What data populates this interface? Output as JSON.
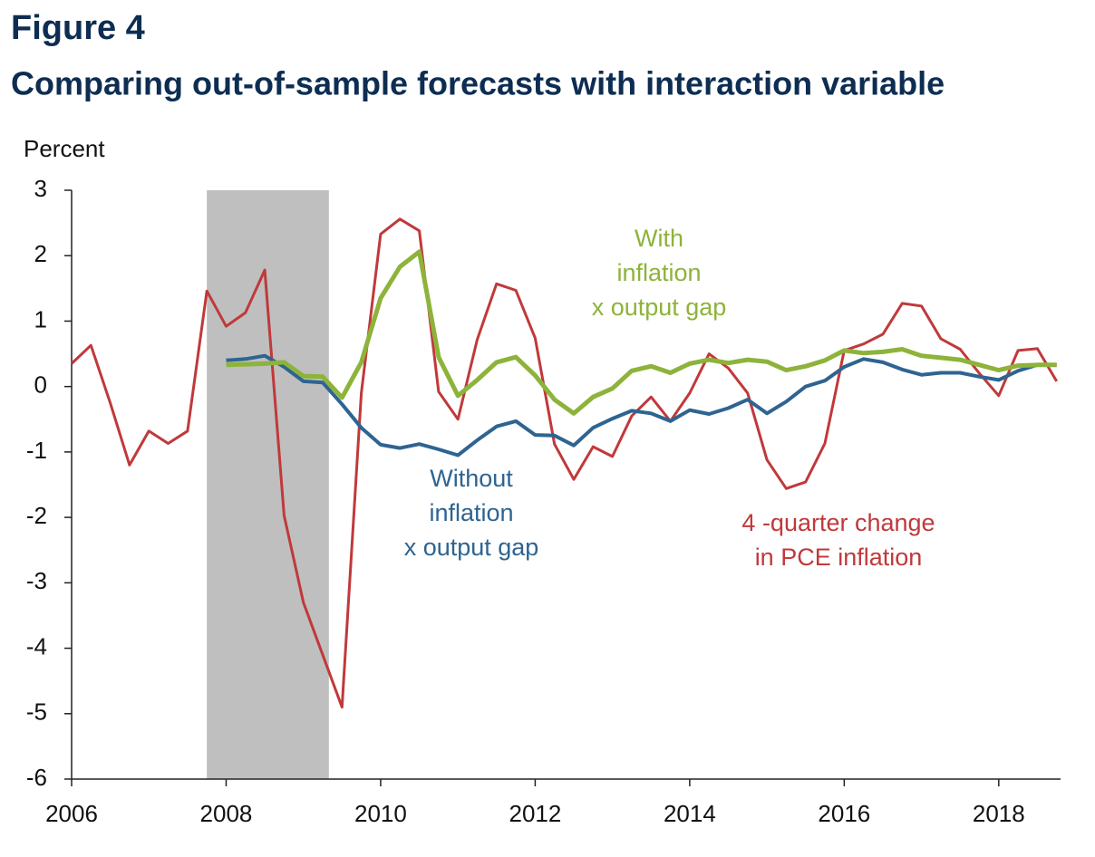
{
  "chart_data": {
    "type": "line",
    "title": "Figure 4",
    "subtitle": "Comparing out-of-sample forecasts with interaction variable",
    "y_label": "Percent",
    "xlim": [
      2006,
      2018.8
    ],
    "xticks": [
      2006,
      2008,
      2010,
      2012,
      2014,
      2016,
      2018
    ],
    "ylim": [
      -6,
      3
    ],
    "yticks": [
      -6,
      -5,
      -4,
      -3,
      -2,
      -1,
      0,
      1,
      2,
      3
    ],
    "shade": {
      "x": [
        2007.75,
        2009.33
      ],
      "color": "#bfbfbf"
    },
    "series": [
      {
        "label": [
          "4 -quarter change",
          "in PCE inflation"
        ],
        "color": "#c0393b",
        "width": 3,
        "x": [
          2006,
          2006.25,
          2006.5,
          2006.75,
          2007,
          2007.25,
          2007.5,
          2007.75,
          2008,
          2008.25,
          2008.5,
          2008.75,
          2009,
          2009.25,
          2009.5,
          2009.75,
          2010,
          2010.25,
          2010.5,
          2010.75,
          2011,
          2011.25,
          2011.5,
          2011.75,
          2012,
          2012.25,
          2012.5,
          2012.75,
          2013,
          2013.25,
          2013.5,
          2013.75,
          2014,
          2014.25,
          2014.5,
          2014.75,
          2015,
          2015.25,
          2015.5,
          2015.75,
          2016,
          2016.25,
          2016.5,
          2016.75,
          2017,
          2017.25,
          2017.5,
          2017.75,
          2018,
          2018.25,
          2018.5,
          2018.75
        ],
        "values": [
          0.35,
          0.63,
          -0.25,
          -1.2,
          -0.68,
          -0.87,
          -0.68,
          1.46,
          0.92,
          1.13,
          1.78,
          -1.97,
          -3.3,
          -4.1,
          -4.9,
          -0.1,
          2.33,
          2.56,
          2.38,
          -0.08,
          -0.5,
          0.72,
          1.57,
          1.47,
          0.74,
          -0.88,
          -1.42,
          -0.92,
          -1.07,
          -0.45,
          -0.16,
          -0.53,
          -0.1,
          0.5,
          0.28,
          -0.1,
          -1.12,
          -1.56,
          -1.46,
          -0.87,
          0.55,
          0.65,
          0.8,
          1.27,
          1.23,
          0.73,
          0.57,
          0.2,
          -0.14,
          0.55,
          0.58,
          0.08
        ]
      },
      {
        "label": [
          "Without",
          "inflation",
          "x output gap"
        ],
        "color": "#2e6491",
        "width": 4,
        "x": [
          2008,
          2008.25,
          2008.5,
          2008.75,
          2009,
          2009.25,
          2009.5,
          2009.75,
          2010,
          2010.25,
          2010.5,
          2010.75,
          2011,
          2011.25,
          2011.5,
          2011.75,
          2012,
          2012.25,
          2012.5,
          2012.75,
          2013,
          2013.25,
          2013.5,
          2013.75,
          2014,
          2014.25,
          2014.5,
          2014.75,
          2015,
          2015.25,
          2015.5,
          2015.75,
          2016,
          2016.25,
          2016.5,
          2016.75,
          2017,
          2017.25,
          2017.5,
          2017.75,
          2018,
          2018.25,
          2018.5,
          2018.75
        ],
        "values": [
          0.4,
          0.42,
          0.47,
          0.3,
          0.08,
          0.06,
          -0.27,
          -0.63,
          -0.89,
          -0.94,
          -0.88,
          -0.96,
          -1.05,
          -0.82,
          -0.61,
          -0.53,
          -0.74,
          -0.75,
          -0.9,
          -0.63,
          -0.49,
          -0.37,
          -0.41,
          -0.53,
          -0.36,
          -0.42,
          -0.33,
          -0.2,
          -0.41,
          -0.23,
          0.0,
          0.09,
          0.3,
          0.42,
          0.37,
          0.26,
          0.18,
          0.21,
          0.21,
          0.15,
          0.1,
          0.24,
          0.33,
          0.33
        ]
      },
      {
        "label": [
          "With",
          "inflation",
          "x output gap"
        ],
        "color": "#8db33a",
        "width": 5,
        "x": [
          2008,
          2008.25,
          2008.5,
          2008.75,
          2009,
          2009.25,
          2009.5,
          2009.75,
          2010,
          2010.25,
          2010.5,
          2010.75,
          2011,
          2011.25,
          2011.5,
          2011.75,
          2012,
          2012.25,
          2012.5,
          2012.75,
          2013,
          2013.25,
          2013.5,
          2013.75,
          2014,
          2014.25,
          2014.5,
          2014.75,
          2015,
          2015.25,
          2015.5,
          2015.75,
          2016,
          2016.25,
          2016.5,
          2016.75,
          2017,
          2017.25,
          2017.5,
          2017.75,
          2018,
          2018.25,
          2018.5,
          2018.75
        ],
        "values": [
          0.33,
          0.34,
          0.35,
          0.37,
          0.16,
          0.15,
          -0.17,
          0.37,
          1.35,
          1.83,
          2.06,
          0.45,
          -0.14,
          0.1,
          0.37,
          0.45,
          0.17,
          -0.2,
          -0.41,
          -0.16,
          -0.03,
          0.24,
          0.31,
          0.21,
          0.35,
          0.41,
          0.36,
          0.41,
          0.38,
          0.25,
          0.31,
          0.4,
          0.55,
          0.51,
          0.53,
          0.57,
          0.47,
          0.44,
          0.41,
          0.33,
          0.25,
          0.32,
          0.33,
          0.33
        ]
      }
    ]
  }
}
